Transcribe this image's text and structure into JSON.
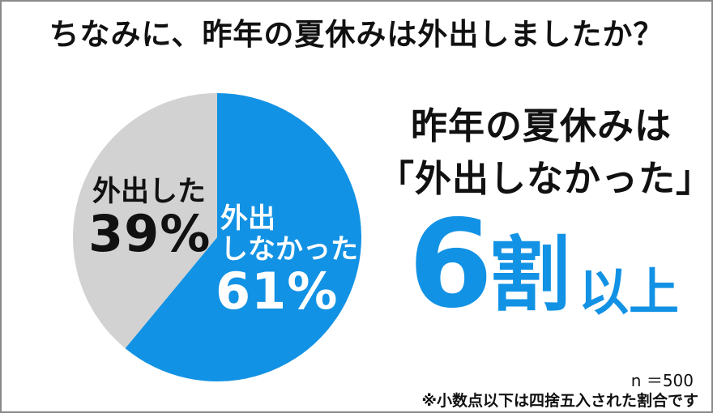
{
  "chart_data": {
    "type": "pie",
    "title": "ちなみに、昨年の夏休みは外出しましたか？",
    "categories": [
      "外出しなかった",
      "外出した"
    ],
    "values": [
      61,
      39
    ],
    "colors": [
      "#1292e4",
      "#d2d2d2"
    ],
    "value_labels": [
      "61%",
      "39%"
    ],
    "label_lines": [
      [
        "外出",
        "しなかった"
      ],
      [
        "外出した"
      ]
    ]
  },
  "headline": {
    "line1": "昨年の夏休みは",
    "line2": "「外出しなかった」"
  },
  "big_result": {
    "number": "6",
    "unit": "割",
    "suffix": "以上"
  },
  "notes": {
    "sample_size": "n ＝500",
    "rounding": "※小数点以下は四捨五入された割合です"
  }
}
